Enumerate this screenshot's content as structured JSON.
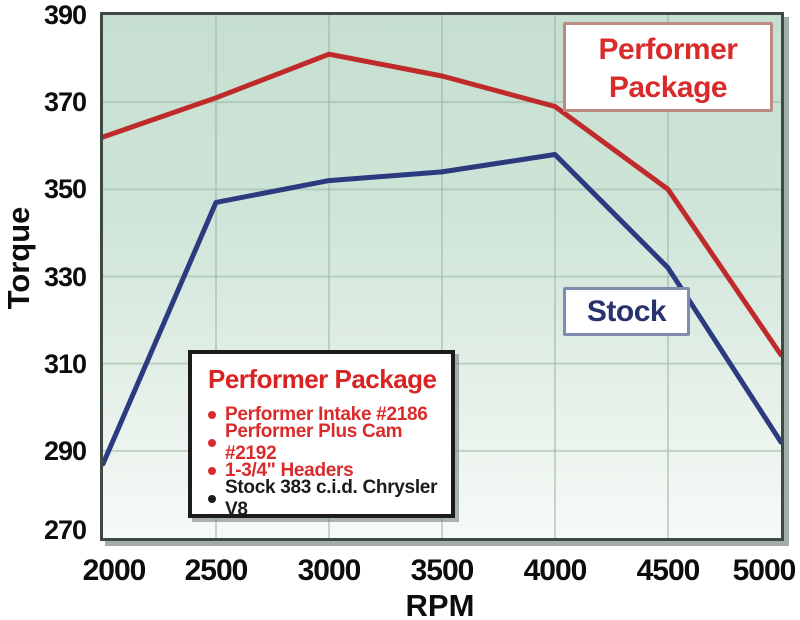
{
  "chart_data": {
    "type": "line",
    "x": [
      2000,
      2500,
      3000,
      3500,
      4000,
      4500,
      5000
    ],
    "series": [
      {
        "name": "Performer Package",
        "color": "#bf2b2b",
        "values": [
          362,
          371,
          381,
          376,
          369,
          350,
          312
        ]
      },
      {
        "name": "Stock",
        "color": "#2c3a80",
        "values": [
          287,
          347,
          352,
          354,
          358,
          332,
          292
        ]
      }
    ],
    "title": "",
    "xlabel": "RPM",
    "ylabel": "Torque",
    "xticks": [
      2000,
      2500,
      3000,
      3500,
      4000,
      4500,
      5000
    ],
    "yticks": [
      270,
      290,
      310,
      330,
      350,
      370,
      390
    ],
    "xlim": [
      2000,
      5000
    ],
    "ylim": [
      270,
      390
    ],
    "grid": true,
    "legend_position": "in-plot annotation boxes"
  },
  "annotations": {
    "performer_callout": {
      "line1": "Performer",
      "line2": "Package",
      "text_color": "#d92b2b"
    },
    "stock_callout": {
      "label": "Stock",
      "text_color": "#28336e"
    }
  },
  "legend_box": {
    "title": "Performer Package",
    "title_color": "#d92222",
    "items": [
      {
        "text": "Performer Intake #2186",
        "color": "#d92b2b"
      },
      {
        "text": "Performer Plus Cam #2192",
        "color": "#d92b2b"
      },
      {
        "text": "1-3/4\" Headers",
        "color": "#d92b2b"
      },
      {
        "text": "Stock 383 c.i.d. Chrysler V8",
        "color": "#1b1b1b"
      }
    ]
  },
  "colors": {
    "performer_line": "#bf2b2b",
    "stock_line": "#2c3a80",
    "gridline": "#9cb6a6",
    "plot_border": "#3d4a44",
    "plot_bg_top": "#c6dfd0",
    "plot_bg_bottom": "#f6faf7"
  }
}
